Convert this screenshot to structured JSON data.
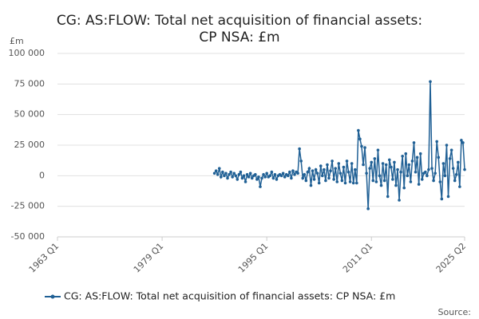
{
  "chart_data": {
    "type": "line",
    "title": "CG: AS:FLOW: Total net acquisition of financial assets: CP NSA: £m",
    "y_label": "£m",
    "source": "Source:",
    "xlim": [
      1963,
      2025.25
    ],
    "xticks": [
      {
        "value": 1963,
        "label": "1963 Q1"
      },
      {
        "value": 1979,
        "label": "1979 Q1"
      },
      {
        "value": 1995,
        "label": "1995 Q1"
      },
      {
        "value": 2011,
        "label": "2011 Q1"
      },
      {
        "value": 2025.25,
        "label": "2025 Q2"
      }
    ],
    "ylim": [
      -50000,
      100000
    ],
    "yticks": [
      {
        "value": -50000,
        "label": "-50 000"
      },
      {
        "value": -25000,
        "label": "-25 000"
      },
      0,
      {
        "value": 25000,
        "label": "25 000"
      },
      {
        "value": 50000,
        "label": "50 000"
      },
      {
        "value": 75000,
        "label": "75 000"
      },
      {
        "value": 100000,
        "label": "100 000"
      }
    ],
    "grid": true,
    "x": [
      1987,
      1987.25,
      1987.5,
      1987.75,
      1988,
      1988.25,
      1988.5,
      1988.75,
      1989,
      1989.25,
      1989.5,
      1989.75,
      1990,
      1990.25,
      1990.5,
      1990.75,
      1991,
      1991.25,
      1991.5,
      1991.75,
      1992,
      1992.25,
      1992.5,
      1992.75,
      1993,
      1993.25,
      1993.5,
      1993.75,
      1994,
      1994.25,
      1994.5,
      1994.75,
      1995,
      1995.25,
      1995.5,
      1995.75,
      1996,
      1996.25,
      1996.5,
      1996.75,
      1997,
      1997.25,
      1997.5,
      1997.75,
      1998,
      1998.25,
      1998.5,
      1998.75,
      1999,
      1999.25,
      1999.5,
      1999.75,
      2000,
      2000.25,
      2000.5,
      2000.75,
      2001,
      2001.25,
      2001.5,
      2001.75,
      2002,
      2002.25,
      2002.5,
      2002.75,
      2003,
      2003.25,
      2003.5,
      2003.75,
      2004,
      2004.25,
      2004.5,
      2004.75,
      2005,
      2005.25,
      2005.5,
      2005.75,
      2006,
      2006.25,
      2006.5,
      2006.75,
      2007,
      2007.25,
      2007.5,
      2007.75,
      2008,
      2008.25,
      2008.5,
      2008.75,
      2009,
      2009.25,
      2009.5,
      2009.75,
      2010,
      2010.25,
      2010.5,
      2010.75,
      2011,
      2011.25,
      2011.5,
      2011.75,
      2012,
      2012.25,
      2012.5,
      2012.75,
      2013,
      2013.25,
      2013.5,
      2013.75,
      2014,
      2014.25,
      2014.5,
      2014.75,
      2015,
      2015.25,
      2015.5,
      2015.75,
      2016,
      2016.25,
      2016.5,
      2016.75,
      2017,
      2017.25,
      2017.5,
      2017.75,
      2018,
      2018.25,
      2018.5,
      2018.75,
      2019,
      2019.25,
      2019.5,
      2019.75,
      2020,
      2020.25,
      2020.5,
      2020.75,
      2021,
      2021.25,
      2021.5,
      2021.75,
      2022,
      2022.25,
      2022.5,
      2022.75,
      2023,
      2023.25,
      2023.5,
      2023.75,
      2024,
      2024.25,
      2024.5,
      2024.75,
      2025,
      2025.25
    ],
    "series": [
      {
        "name": "CG: AS:FLOW: Total net acquisition of financial assets: CP NSA: £m",
        "color": "#206095",
        "values": [
          2000,
          4000,
          1000,
          6000,
          -1000,
          3000,
          0,
          2000,
          -2000,
          1000,
          3000,
          -1000,
          2000,
          0,
          -3000,
          1000,
          3000,
          -2000,
          0,
          -5000,
          1000,
          -1000,
          2000,
          -2000,
          0,
          1000,
          -3000,
          -1000,
          -9000,
          -2000,
          1000,
          -1000,
          2000,
          -1000,
          0,
          3000,
          -2000,
          1000,
          -3000,
          0,
          1000,
          0,
          2000,
          -1000,
          1000,
          0,
          3000,
          -2000,
          4000,
          1000,
          3000,
          2000,
          22000,
          12000,
          -2000,
          1000,
          -4000,
          3000,
          6000,
          -8000,
          4000,
          -3000,
          5000,
          2000,
          -6000,
          8000,
          0,
          5000,
          -4000,
          9000,
          -2000,
          4000,
          12000,
          -3000,
          6000,
          -5000,
          10000,
          2000,
          -4000,
          7000,
          -6000,
          12000,
          3000,
          -5000,
          10000,
          -6000,
          5000,
          -6000,
          37000,
          30000,
          24000,
          9000,
          23000,
          2000,
          -27000,
          6000,
          11000,
          -4000,
          14000,
          -5000,
          21000,
          0,
          -8000,
          10000,
          -4000,
          9000,
          -17000,
          13000,
          7000,
          -3000,
          11000,
          -8000,
          5000,
          -20000,
          3000,
          16000,
          -10000,
          18000,
          0,
          9000,
          -5000,
          12000,
          27000,
          3000,
          15000,
          -7000,
          18000,
          -3000,
          2000,
          3000,
          0,
          5000,
          77000,
          6000,
          -4000,
          2000,
          28000,
          15000,
          -5000,
          -19000,
          10000,
          0,
          25000,
          -17000,
          14000,
          21000,
          6000,
          -4000,
          1000,
          11000,
          -9000,
          29000,
          27000,
          5000
        ]
      }
    ]
  }
}
